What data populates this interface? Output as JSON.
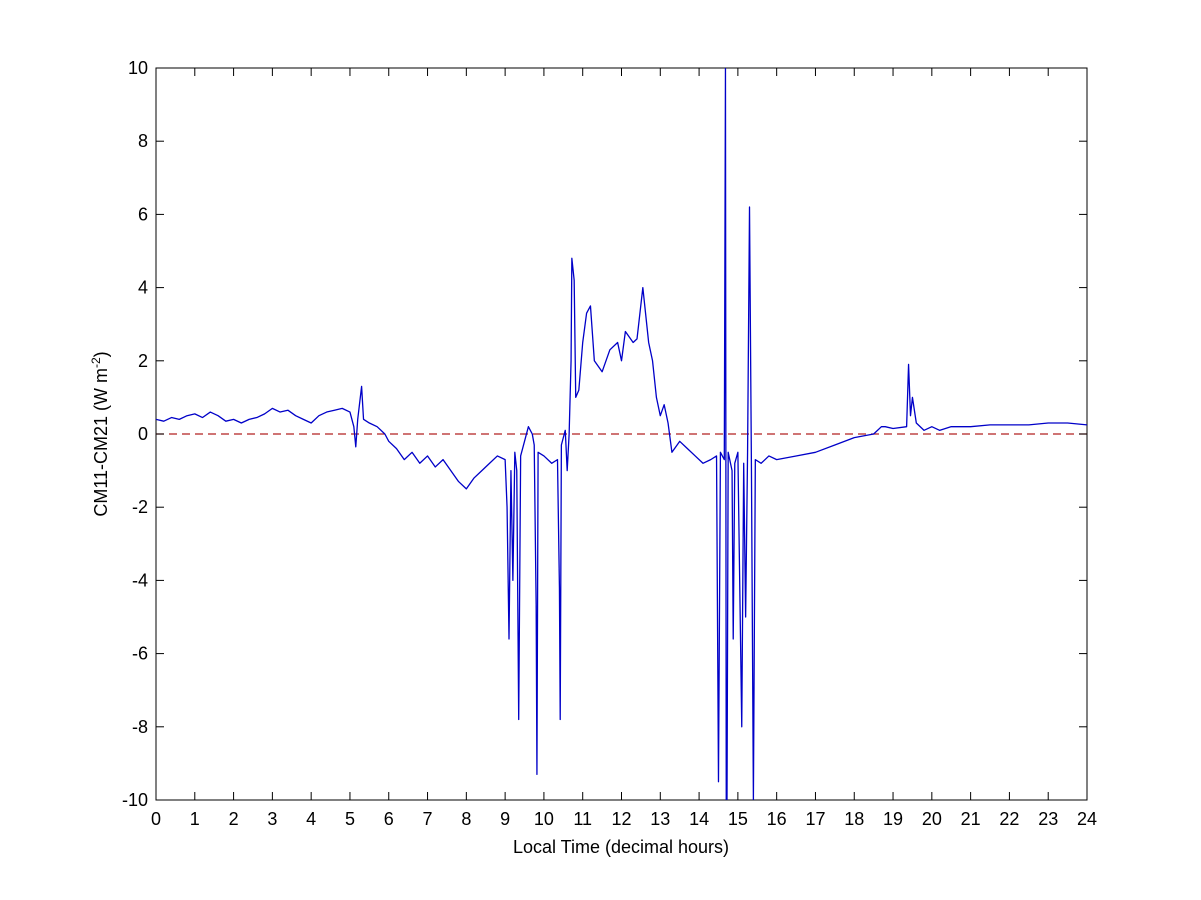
{
  "chart_data": {
    "type": "line",
    "xlabel": "Local Time (decimal hours)",
    "ylabel": {
      "text": "CM11-CM21 (W m",
      "superscript": "-2",
      "suffix": ")"
    },
    "xlim": [
      0,
      24
    ],
    "ylim": [
      -10,
      10
    ],
    "xticks": [
      0,
      1,
      2,
      3,
      4,
      5,
      6,
      7,
      8,
      9,
      10,
      11,
      12,
      13,
      14,
      15,
      16,
      17,
      18,
      19,
      20,
      21,
      22,
      23,
      24
    ],
    "yticks": [
      -10,
      -8,
      -6,
      -4,
      -2,
      0,
      2,
      4,
      6,
      8,
      10
    ],
    "grid": false,
    "reference_line": {
      "value": 0,
      "color": "#b22222",
      "style": "dashed"
    },
    "series": [
      {
        "color": "#0000c8",
        "x": [
          0,
          0.2,
          0.4,
          0.6,
          0.8,
          1.0,
          1.2,
          1.4,
          1.6,
          1.8,
          2.0,
          2.2,
          2.4,
          2.6,
          2.8,
          3.0,
          3.2,
          3.4,
          3.6,
          3.8,
          4.0,
          4.2,
          4.4,
          4.6,
          4.8,
          5.0,
          5.1,
          5.15,
          5.2,
          5.3,
          5.35,
          5.5,
          5.7,
          5.9,
          6.0,
          6.2,
          6.4,
          6.6,
          6.8,
          7.0,
          7.2,
          7.4,
          7.6,
          7.8,
          8.0,
          8.2,
          8.4,
          8.6,
          8.8,
          9.0,
          9.05,
          9.1,
          9.15,
          9.2,
          9.25,
          9.3,
          9.35,
          9.4,
          9.5,
          9.6,
          9.7,
          9.75,
          9.8,
          9.82,
          9.85,
          10.0,
          10.2,
          10.35,
          10.4,
          10.42,
          10.45,
          10.55,
          10.6,
          10.65,
          10.7,
          10.72,
          10.78,
          10.82,
          10.9,
          11.0,
          11.1,
          11.2,
          11.3,
          11.5,
          11.7,
          11.9,
          12.0,
          12.1,
          12.3,
          12.4,
          12.55,
          12.7,
          12.8,
          12.9,
          13.0,
          13.1,
          13.2,
          13.3,
          13.5,
          13.7,
          13.9,
          14.1,
          14.3,
          14.45,
          14.5,
          14.55,
          14.65,
          14.68,
          14.7,
          14.72,
          14.75,
          14.85,
          14.88,
          14.92,
          15.0,
          15.1,
          15.15,
          15.2,
          15.25,
          15.3,
          15.35,
          15.4,
          15.45,
          15.6,
          15.8,
          16.0,
          16.5,
          17.0,
          17.5,
          18.0,
          18.5,
          18.7,
          18.8,
          19.0,
          19.35,
          19.4,
          19.45,
          19.5,
          19.6,
          19.8,
          20.0,
          20.2,
          20.5,
          21.0,
          21.5,
          22.0,
          22.5,
          23.0,
          23.5,
          24.0
        ],
        "values": [
          0.4,
          0.35,
          0.45,
          0.4,
          0.5,
          0.55,
          0.45,
          0.6,
          0.5,
          0.35,
          0.4,
          0.3,
          0.4,
          0.45,
          0.55,
          0.7,
          0.6,
          0.65,
          0.5,
          0.4,
          0.3,
          0.5,
          0.6,
          0.65,
          0.7,
          0.6,
          0.2,
          -0.35,
          0.4,
          1.3,
          0.4,
          0.3,
          0.2,
          0,
          -0.2,
          -0.4,
          -0.7,
          -0.5,
          -0.8,
          -0.6,
          -0.9,
          -0.7,
          -1.0,
          -1.3,
          -1.5,
          -1.2,
          -1.0,
          -0.8,
          -0.6,
          -0.7,
          -2,
          -5.6,
          -1,
          -4,
          -0.5,
          -1,
          -7.8,
          -0.6,
          -0.2,
          0.2,
          0,
          -0.3,
          -4.7,
          -9.3,
          -0.5,
          -0.6,
          -0.8,
          -0.7,
          -4.2,
          -7.8,
          -0.3,
          0.1,
          -1,
          0,
          2,
          4.8,
          4.2,
          1,
          1.2,
          2.5,
          3.3,
          3.5,
          2.0,
          1.7,
          2.3,
          2.5,
          2.0,
          2.8,
          2.5,
          2.6,
          4.0,
          2.5,
          2.0,
          1.0,
          0.5,
          0.8,
          0.3,
          -0.5,
          -0.2,
          -0.4,
          -0.6,
          -0.8,
          -0.7,
          -0.6,
          -9.5,
          -0.5,
          -0.7,
          10,
          -10,
          -10,
          -0.5,
          -1,
          -5.6,
          -0.8,
          -0.5,
          -8,
          -0.8,
          -5,
          -0.5,
          6.2,
          -1,
          -10,
          -0.7,
          -0.8,
          -0.6,
          -0.7,
          -0.6,
          -0.5,
          -0.3,
          -0.1,
          0.0,
          0.2,
          0.2,
          0.15,
          0.2,
          1.9,
          0.5,
          1.0,
          0.3,
          0.1,
          0.2,
          0.1,
          0.2,
          0.2,
          0.25,
          0.25,
          0.25,
          0.3,
          0.3,
          0.25
        ]
      }
    ]
  }
}
